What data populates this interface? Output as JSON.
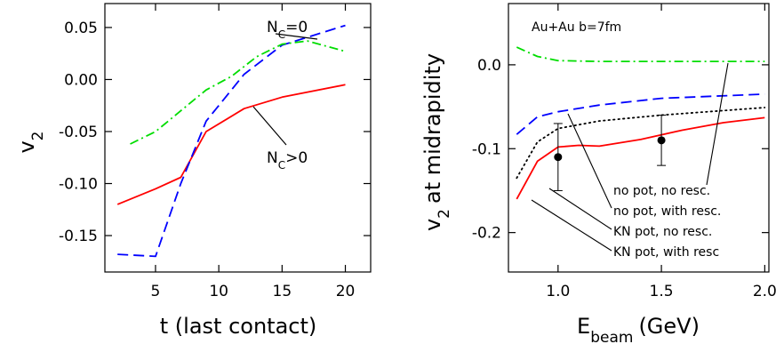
{
  "chart_data": [
    {
      "type": "line",
      "xlabel": "t (last contact)",
      "ylabel": "v2",
      "xlim": [
        1,
        22
      ],
      "ylim": [
        -0.185,
        0.073
      ],
      "xticks": [
        5,
        10,
        15,
        20
      ],
      "yticks": [
        0.05,
        0.0,
        -0.05,
        -0.1,
        -0.15
      ],
      "xtick_labels": [
        "5",
        "10",
        "15",
        "20"
      ],
      "ytick_labels": [
        "0.05",
        "0.00",
        "-0.05",
        "-0.10",
        "-0.15"
      ],
      "series": [
        {
          "name": "N_C>0",
          "color": "#ff0000",
          "dash": "solid",
          "x": [
            2,
            5,
            7,
            9,
            12,
            15,
            20
          ],
          "y": [
            -0.12,
            -0.105,
            -0.094,
            -0.05,
            -0.028,
            -0.017,
            -0.005
          ]
        },
        {
          "name": "N_C=0",
          "color": "#0000ff",
          "dash": "dashed",
          "x": [
            2,
            5,
            7,
            9,
            12,
            15,
            20
          ],
          "y": [
            -0.168,
            -0.17,
            -0.1,
            -0.04,
            0.005,
            0.033,
            0.052
          ]
        },
        {
          "color": "#00dd00",
          "dash": "dashdot",
          "x": [
            3,
            5,
            7,
            9,
            11,
            13,
            15,
            17,
            20
          ],
          "y": [
            -0.062,
            -0.05,
            -0.03,
            -0.01,
            0.003,
            0.022,
            0.034,
            0.037,
            0.027
          ]
        }
      ],
      "labels": [
        {
          "text": "N",
          "sub": "C",
          "rest": "=0",
          "color": "#0000ff"
        },
        {
          "text": "N",
          "sub": "C",
          "rest": ">0",
          "color": "#ff0000"
        }
      ]
    },
    {
      "type": "line",
      "xlabel": "E",
      "xlabel_sub": "beam",
      "xlabel_rest": "(GeV)",
      "ylabel": "v",
      "ylabel_sub": "2",
      "ylabel_rest": "at midrapidity",
      "annotation": "Au+Au b=7fm",
      "xlim": [
        0.76,
        2.02
      ],
      "ylim": [
        -0.247,
        0.073
      ],
      "xticks": [
        1.0,
        1.5,
        2.0
      ],
      "yticks": [
        0.0,
        -0.1,
        -0.2
      ],
      "xtick_labels": [
        "1.0",
        "1.5",
        "2.0"
      ],
      "ytick_labels": [
        "0.0",
        "-0.1",
        "-0.2"
      ],
      "series": [
        {
          "name": "no pot, no resc.",
          "color": "#00dd00",
          "dash": "dashdot",
          "x": [
            0.8,
            0.9,
            1.0,
            1.2,
            1.5,
            2.0
          ],
          "y": [
            0.021,
            0.01,
            0.005,
            0.004,
            0.004,
            0.004
          ]
        },
        {
          "name": "no pot, with resc.",
          "color": "#0000ff",
          "dash": "dashed",
          "x": [
            0.8,
            0.9,
            1.0,
            1.2,
            1.5,
            2.0
          ],
          "y": [
            -0.083,
            -0.062,
            -0.056,
            -0.048,
            -0.04,
            -0.035
          ]
        },
        {
          "name": "KN pot, no resc.",
          "color": "#000000",
          "dash": "dotted",
          "x": [
            0.8,
            0.9,
            1.0,
            1.2,
            1.5,
            2.0
          ],
          "y": [
            -0.135,
            -0.092,
            -0.076,
            -0.067,
            -0.06,
            -0.051
          ]
        },
        {
          "name": "KN pot, with resc",
          "color": "#ff0000",
          "dash": "solid",
          "x": [
            0.8,
            0.9,
            1.0,
            1.1,
            1.2,
            1.4,
            1.6,
            1.8,
            2.0
          ],
          "y": [
            -0.16,
            -0.115,
            -0.098,
            -0.096,
            -0.097,
            -0.089,
            -0.078,
            -0.069,
            -0.063
          ]
        },
        {
          "type": "scatter",
          "color": "#000000",
          "x": [
            1.0,
            1.5
          ],
          "y": [
            -0.11,
            -0.09
          ],
          "err": [
            0.04,
            0.03
          ]
        }
      ]
    }
  ]
}
